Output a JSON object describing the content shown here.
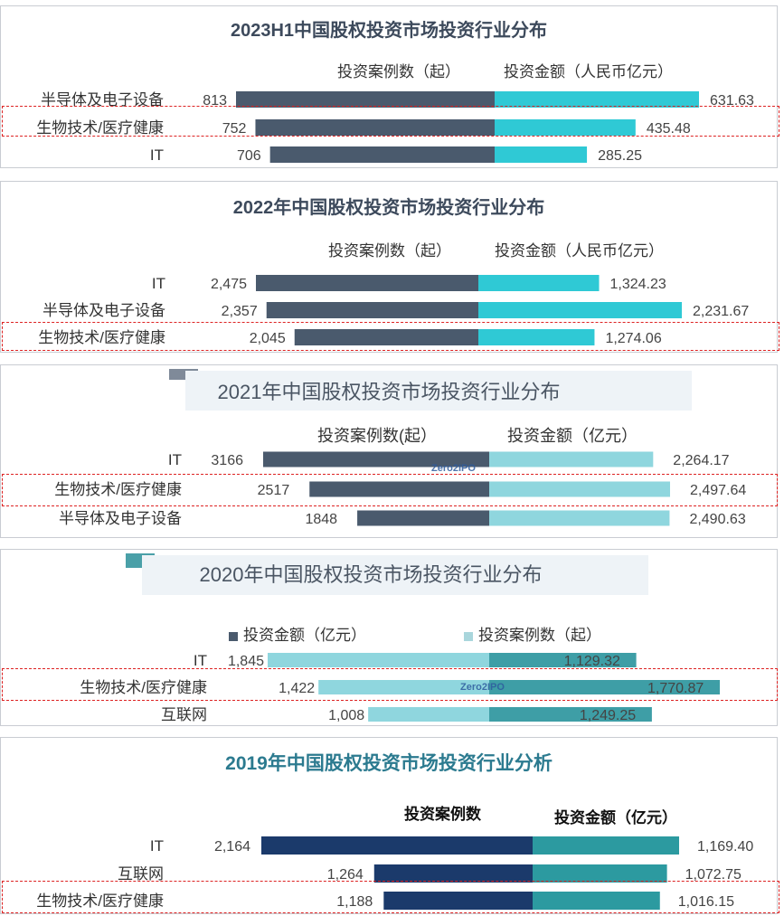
{
  "colors": {
    "dark": "#4a5a6d",
    "cyan": "#2fc9d5",
    "teal": "#3e9ea6",
    "light_cyan": "#8fd6de",
    "navy": "#1b3a6b",
    "teal2": "#2c9aa0",
    "highlight": "#d22222"
  },
  "chart_data": [
    {
      "type": "bar",
      "title": "2023H1中国股权投资市场投资行业分布",
      "series": [
        {
          "name": "投资案例数（起）",
          "values": [
            813,
            752,
            706
          ],
          "labels": [
            "813",
            "752",
            "706"
          ]
        },
        {
          "name": "投资金额（人民币亿元）",
          "values": [
            631.63,
            435.48,
            285.25
          ],
          "labels": [
            "631.63",
            "435.48",
            "285.25"
          ]
        }
      ],
      "categories": [
        "半导体及电子设备",
        "生物技术/医疗健康",
        "IT"
      ],
      "highlighted": "生物技术/医疗健康"
    },
    {
      "type": "bar",
      "title": "2022年中国股权投资市场投资行业分布",
      "series": [
        {
          "name": "投资案例数（起）",
          "values": [
            2475,
            2357,
            2045
          ],
          "labels": [
            "2,475",
            "2,357",
            "2,045"
          ]
        },
        {
          "name": "投资金额（人民币亿元）",
          "values": [
            1324.23,
            2231.67,
            1274.06
          ],
          "labels": [
            "1,324.23",
            "2,231.67",
            "1,274.06"
          ]
        }
      ],
      "categories": [
        "IT",
        "半导体及电子设备",
        "生物技术/医疗健康"
      ],
      "highlighted": "生物技术/医疗健康"
    },
    {
      "type": "bar",
      "title": "2021年中国股权投资市场投资行业分布",
      "series": [
        {
          "name": "投资案例数(起）",
          "values": [
            3166,
            2517,
            1848
          ],
          "labels": [
            "3166",
            "2517",
            "1848"
          ]
        },
        {
          "name": "投资金额（亿元）",
          "values": [
            2264.17,
            2497.64,
            2490.63
          ],
          "labels": [
            "2,264.17",
            "2,497.64",
            "2,490.63"
          ]
        }
      ],
      "categories": [
        "IT",
        "生物技术/医疗健康",
        "半导体及电子设备"
      ],
      "highlighted": "生物技术/医疗健康",
      "watermark": "Zero2IPO"
    },
    {
      "type": "bar",
      "title": "2020年中国股权投资市场投资行业分布",
      "legend": [
        "投资金额（亿元）",
        "投资案例数（起）"
      ],
      "series": [
        {
          "name": "投资案例数（起）",
          "values": [
            1845,
            1422,
            1008
          ],
          "labels": [
            "1,845",
            "1,422",
            "1,008"
          ]
        },
        {
          "name": "投资金额（亿元）",
          "values": [
            1129.32,
            1770.87,
            1249.25
          ],
          "labels": [
            "1,129.32",
            "1,770.87",
            "1,249.25"
          ]
        }
      ],
      "categories": [
        "IT",
        "生物技术/医疗健康",
        "互联网"
      ],
      "highlighted": "生物技术/医疗健康",
      "watermark": "Zero2IPO"
    },
    {
      "type": "bar",
      "title": "2019年中国股权投资市场投资行业分析",
      "series": [
        {
          "name": "投资案例数",
          "values": [
            2164,
            1264,
            1188
          ],
          "labels": [
            "2,164",
            "1,264",
            "1,188"
          ]
        },
        {
          "name": "投资金额（亿元）",
          "values": [
            1169.4,
            1072.75,
            1016.15
          ],
          "labels": [
            "1,169.40",
            "1,072.75",
            "1,016.15"
          ]
        }
      ],
      "categories": [
        "IT",
        "互联网",
        "生物技术/医疗健康"
      ],
      "highlighted": "生物技术/医疗健康"
    }
  ]
}
